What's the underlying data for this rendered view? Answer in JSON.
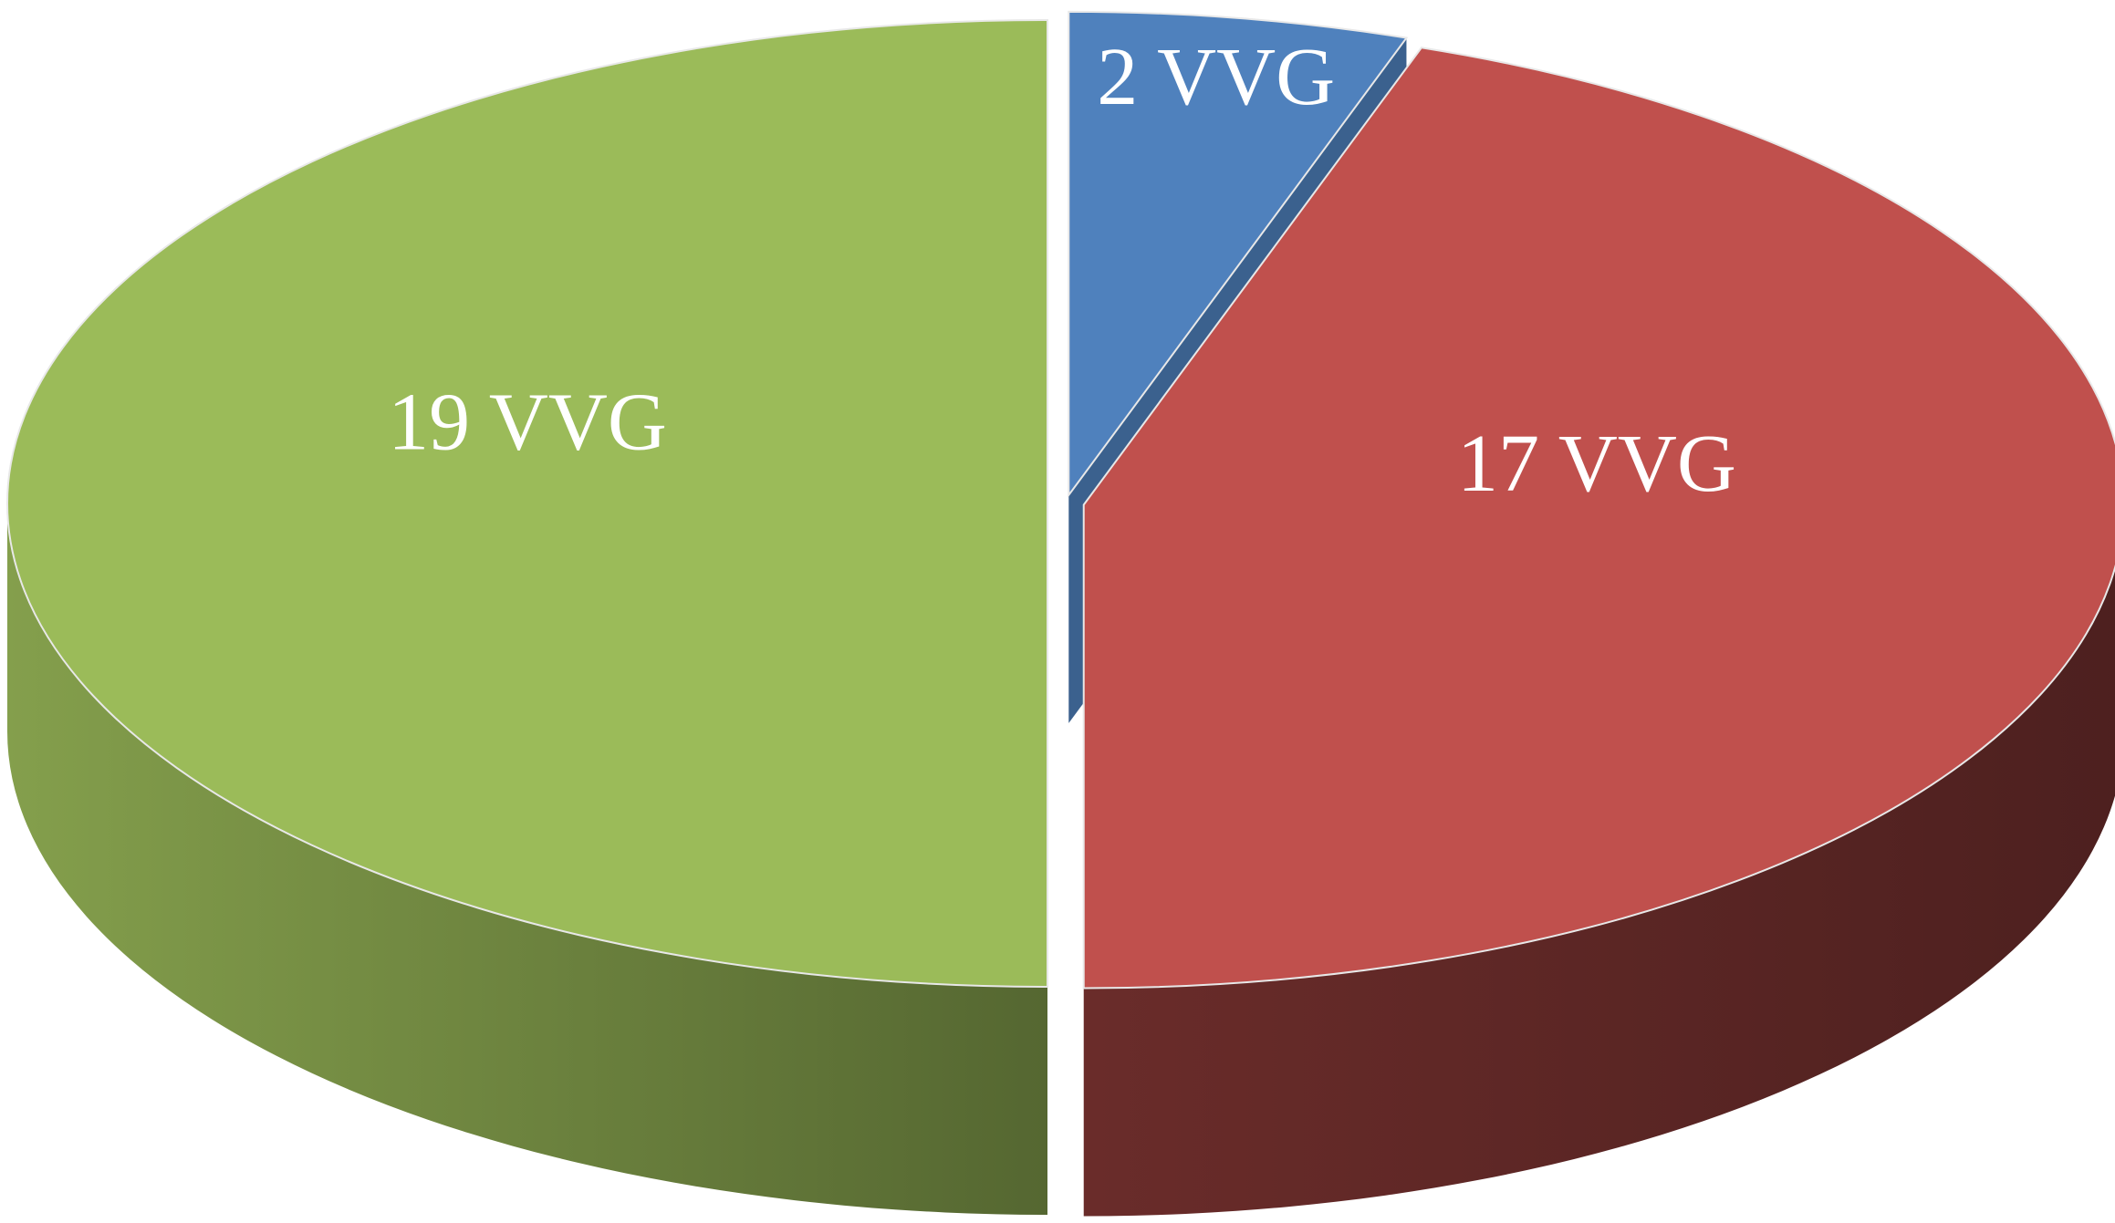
{
  "chart_data": {
    "type": "pie",
    "values": [
      2,
      17,
      19
    ],
    "value_labels": [
      "2 VVG",
      "17 VVG",
      "19 VVG"
    ],
    "colors": [
      "#4f81bd",
      "#c0504d",
      "#9bbb59"
    ]
  }
}
